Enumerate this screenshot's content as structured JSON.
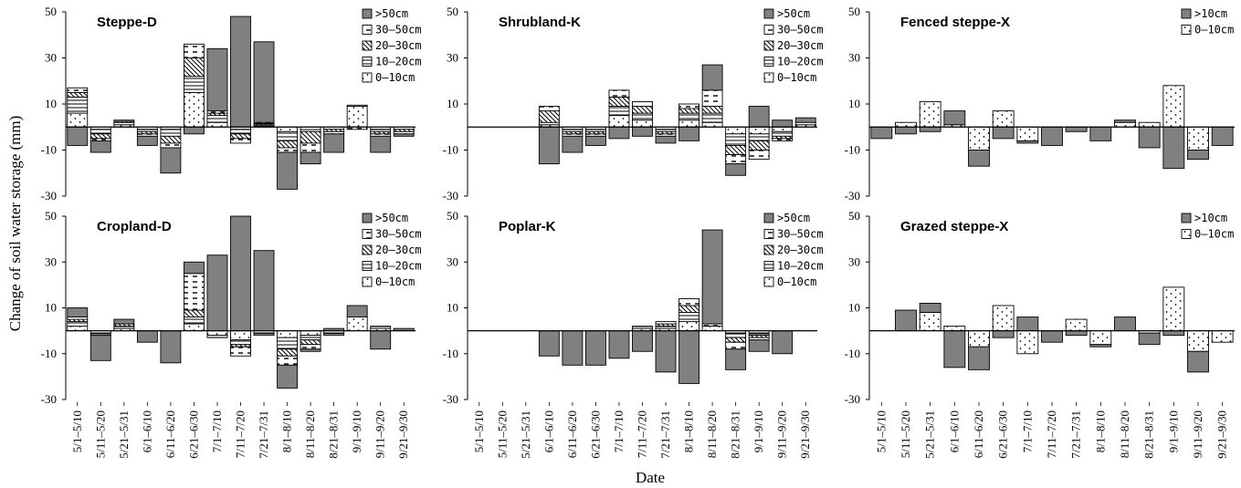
{
  "figure": {
    "ylabel": "Change of soil water storage (mm)",
    "xlabel": "Date"
  },
  "chart_data": [
    {
      "type": "bar",
      "stacked": true,
      "title": "Steppe-D",
      "ylim": [
        -30,
        50
      ],
      "yticks": [
        -30,
        -10,
        10,
        30,
        50
      ],
      "categories": [
        "5/1–5/10",
        "5/11–5/20",
        "5/21–5/31",
        "6/1–6/10",
        "6/11–6/20",
        "6/21–6/30",
        "7/1–7/10",
        "7/11–7/20",
        "7/21–7/31",
        "8/1–8/10",
        "8/11–8/20",
        "8/21–8/31",
        "9/1–9/10",
        "9/11–9/20",
        "9/21–9/30"
      ],
      "show_xticks": false,
      "legend": "top-right",
      "series": [
        {
          "name": "0–10cm",
          "pattern": "dots",
          "values": [
            6,
            -1,
            1,
            -1,
            -1,
            15,
            2,
            -1,
            0.5,
            -2,
            0,
            0,
            9,
            -1,
            0
          ]
        },
        {
          "name": "10–20cm",
          "pattern": "hlines",
          "values": [
            7,
            -2,
            1,
            -1,
            -3,
            7,
            3,
            -2,
            0.5,
            -4,
            -2,
            -1,
            0.5,
            -1,
            -1
          ]
        },
        {
          "name": "20–30cm",
          "pattern": "diag",
          "values": [
            2,
            -2,
            0.5,
            -1,
            -3,
            8,
            1,
            -2,
            0.5,
            -3,
            -5,
            -1,
            0,
            -1,
            -1
          ]
        },
        {
          "name": "30–50cm",
          "pattern": "dashes",
          "values": [
            2,
            -1,
            0.5,
            -1,
            -2,
            6,
            1,
            -2,
            0.5,
            -2,
            -4,
            -1,
            -1,
            -1,
            -1
          ]
        },
        {
          "name": ">50cm",
          "pattern": "solid",
          "values": [
            -8,
            -5,
            0,
            -4,
            -11,
            -3,
            27,
            48,
            35,
            -16,
            -5,
            -8,
            0,
            -7,
            -1
          ]
        }
      ]
    },
    {
      "type": "bar",
      "stacked": true,
      "title": "Shrubland-K",
      "ylim": [
        -30,
        50
      ],
      "yticks": [
        -30,
        -10,
        10,
        30,
        50
      ],
      "categories": [
        "5/1–5/10",
        "5/11–5/20",
        "5/21–5/31",
        "6/1–6/10",
        "6/11–6/20",
        "6/21–6/30",
        "7/1–7/10",
        "7/11–7/20",
        "7/21–7/31",
        "8/1–8/10",
        "8/11–8/20",
        "8/21–8/31",
        "9/1–9/10",
        "9/11–9/20",
        "9/21–9/30"
      ],
      "show_xticks": false,
      "legend": "top-right",
      "series": [
        {
          "name": "0–10cm",
          "pattern": "dots",
          "values": [
            0,
            0,
            0,
            1,
            -1,
            -1,
            5,
            3,
            -1,
            3,
            2,
            -3,
            -3,
            -2,
            1
          ]
        },
        {
          "name": "10–20cm",
          "pattern": "hlines",
          "values": [
            0,
            0,
            0,
            1,
            -1,
            -1,
            4,
            3,
            -1,
            3,
            4,
            -5,
            -3,
            -2,
            1
          ]
        },
        {
          "name": "20–30cm",
          "pattern": "diag",
          "values": [
            0,
            0,
            0,
            5,
            -1,
            -1,
            4,
            3,
            -1,
            2,
            3,
            -4,
            -4,
            -1,
            0
          ]
        },
        {
          "name": "30–50cm",
          "pattern": "dashes",
          "values": [
            0,
            0,
            0,
            2,
            -1,
            -1,
            3,
            2,
            -1,
            2,
            7,
            -4,
            -4,
            -1,
            0
          ]
        },
        {
          "name": ">50cm",
          "pattern": "solid",
          "values": [
            0,
            0,
            0,
            -16,
            -7,
            -4,
            -5,
            -4,
            -3,
            -6,
            11,
            -5,
            9,
            3,
            2
          ]
        }
      ]
    },
    {
      "type": "bar",
      "stacked": true,
      "title": "Fenced steppe-X",
      "ylim": [
        -30,
        50
      ],
      "yticks": [
        -30,
        -10,
        10,
        30,
        50
      ],
      "categories": [
        "5/1–5/10",
        "5/11–5/20",
        "5/21–5/31",
        "6/1–6/10",
        "6/11–6/20",
        "6/21–6/30",
        "7/1–7/10",
        "7/11–7/20",
        "7/21–7/31",
        "8/1–8/10",
        "8/11–8/20",
        "8/21–8/31",
        "9/1–9/10",
        "9/11–9/20",
        "9/21–9/30"
      ],
      "show_xticks": false,
      "legend": "top-right",
      "series": [
        {
          "name": "0–10cm",
          "pattern": "dots",
          "values": [
            0,
            2,
            11,
            1,
            -10,
            7,
            -6,
            0,
            0,
            0,
            2,
            2,
            18,
            -10,
            0
          ]
        },
        {
          "name": ">10cm",
          "pattern": "solid",
          "values": [
            -5,
            -3,
            -2,
            6,
            -7,
            -5,
            -1,
            -8,
            -2,
            -6,
            1,
            -9,
            -18,
            -4,
            -8
          ]
        }
      ]
    },
    {
      "type": "bar",
      "stacked": true,
      "title": "Cropland-D",
      "ylim": [
        -30,
        50
      ],
      "yticks": [
        -30,
        -10,
        10,
        30,
        50
      ],
      "categories": [
        "5/1–5/10",
        "5/11–5/20",
        "5/21–5/31",
        "6/1–6/10",
        "6/11–6/20",
        "6/21–6/30",
        "7/1–7/10",
        "7/11–7/20",
        "7/21–7/31",
        "8/1–8/10",
        "8/11–8/20",
        "8/21–8/31",
        "9/1–9/10",
        "9/11–9/20",
        "9/21–9/30"
      ],
      "show_xticks": true,
      "legend": "top-right",
      "series": [
        {
          "name": "0–10cm",
          "pattern": "dots",
          "values": [
            2,
            -1,
            1,
            0,
            0,
            3,
            -2,
            -4,
            -1,
            -3,
            -2,
            -1,
            6,
            1,
            0
          ]
        },
        {
          "name": "10–20cm",
          "pattern": "hlines",
          "values": [
            2,
            -1,
            1,
            0,
            0,
            3,
            -1,
            -2,
            -1,
            -5,
            -2,
            -1,
            0,
            1,
            0
          ]
        },
        {
          "name": "20–30cm",
          "pattern": "diag",
          "values": [
            1,
            0,
            1,
            0,
            0,
            3,
            0,
            -1,
            0,
            -3,
            -2,
            0,
            0,
            0,
            0
          ]
        },
        {
          "name": "30–50cm",
          "pattern": "dashes",
          "values": [
            1,
            0,
            0,
            0,
            0,
            16,
            0,
            -4,
            0,
            -4,
            -2,
            0,
            0,
            0,
            0
          ]
        },
        {
          "name": ">50cm",
          "pattern": "solid",
          "values": [
            4,
            -11,
            2,
            -5,
            -14,
            5,
            33,
            50,
            35,
            -10,
            -1,
            1,
            5,
            -8,
            1
          ]
        }
      ]
    },
    {
      "type": "bar",
      "stacked": true,
      "title": "Poplar-K",
      "ylim": [
        -30,
        50
      ],
      "yticks": [
        -30,
        -10,
        10,
        30,
        50
      ],
      "categories": [
        "5/1–5/10",
        "5/11–5/20",
        "5/21–5/31",
        "6/1–6/10",
        "6/11–6/20",
        "6/21–6/30",
        "7/1–7/10",
        "7/11–7/20",
        "7/21–7/31",
        "8/1–8/10",
        "8/11–8/20",
        "8/21–8/31",
        "9/1–9/10",
        "9/11–9/20",
        "9/21–9/30"
      ],
      "show_xticks": true,
      "legend": "top-right",
      "series": [
        {
          "name": "0–10cm",
          "pattern": "dots",
          "values": [
            0,
            0,
            0,
            0,
            0,
            0,
            0,
            1,
            1,
            4,
            2,
            -1,
            -1,
            0,
            0
          ]
        },
        {
          "name": "10–20cm",
          "pattern": "hlines",
          "values": [
            0,
            0,
            0,
            0,
            0,
            0,
            0,
            1,
            1,
            4,
            0,
            -2,
            -1,
            0,
            0
          ]
        },
        {
          "name": "20–30cm",
          "pattern": "diag",
          "values": [
            0,
            0,
            0,
            0,
            0,
            0,
            0,
            0,
            1,
            3,
            0,
            -2,
            -1,
            0,
            0
          ]
        },
        {
          "name": "30–50cm",
          "pattern": "dashes",
          "values": [
            0,
            0,
            0,
            0,
            0,
            0,
            0,
            0,
            1,
            3,
            1,
            -3,
            -1,
            0,
            0
          ]
        },
        {
          "name": ">50cm",
          "pattern": "solid",
          "values": [
            0,
            0,
            0,
            -11,
            -15,
            -15,
            -12,
            -9,
            -18,
            -23,
            41,
            -9,
            -5,
            -10,
            0
          ]
        }
      ]
    },
    {
      "type": "bar",
      "stacked": true,
      "title": "Grazed steppe-X",
      "ylim": [
        -30,
        50
      ],
      "yticks": [
        -30,
        -10,
        10,
        30,
        50
      ],
      "categories": [
        "5/1–5/10",
        "5/11–5/20",
        "5/21–5/31",
        "6/1–6/10",
        "6/11–6/20",
        "6/21–6/30",
        "7/1–7/10",
        "7/11–7/20",
        "7/21–7/31",
        "8/1–8/10",
        "8/11–8/20",
        "8/21–8/31",
        "9/1–9/10",
        "9/11–9/20",
        "9/21–9/30"
      ],
      "show_xticks": true,
      "legend": "top-right",
      "series": [
        {
          "name": "0–10cm",
          "pattern": "dots",
          "values": [
            0,
            0,
            8,
            2,
            -7,
            11,
            -10,
            0,
            5,
            -6,
            0,
            -1,
            19,
            -9,
            -5
          ]
        },
        {
          "name": ">10cm",
          "pattern": "solid",
          "values": [
            0,
            9,
            4,
            -16,
            -10,
            -3,
            6,
            -5,
            -2,
            -1,
            6,
            -5,
            -2,
            -9,
            0
          ]
        }
      ]
    }
  ]
}
